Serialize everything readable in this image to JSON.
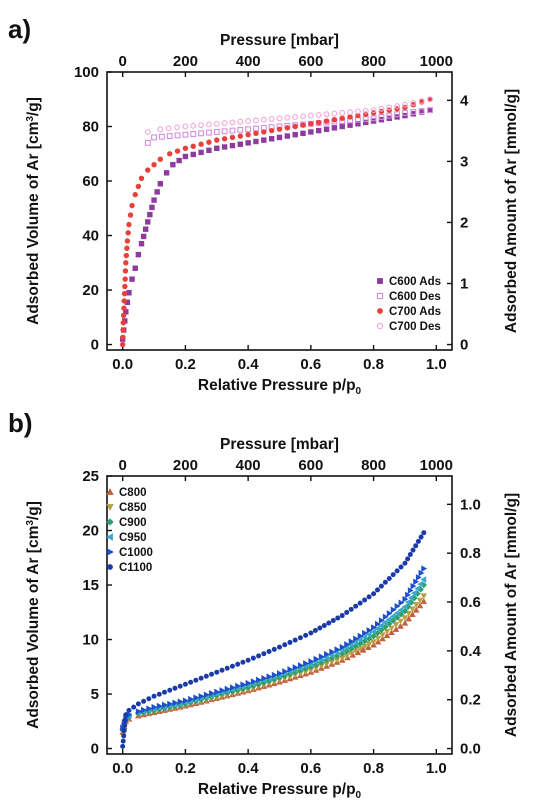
{
  "chart_data": [
    {
      "panel": "a)",
      "type": "scatter",
      "xlabel": "Relative Pressure p/p",
      "xlabel_sub": "0",
      "ylabel": "Adsorbed Volume of Ar [cm",
      "ylabel_sup": "3",
      "ylabel_end": "/g]",
      "top_xlabel": "Pressure [mbar]",
      "right_ylabel": "Adsorbed Amount of Ar [mmol/g]",
      "xlim": [
        -0.05,
        1.05
      ],
      "ylim": [
        -2,
        100
      ],
      "x_ticks": [
        "0.0",
        "0.2",
        "0.4",
        "0.6",
        "0.8",
        "1.0"
      ],
      "y_ticks": [
        "0",
        "20",
        "40",
        "60",
        "80",
        "100"
      ],
      "top_ticks": [
        "0",
        "200",
        "400",
        "600",
        "800",
        "1000"
      ],
      "right_ticks": [
        "0",
        "1",
        "2",
        "3",
        "4"
      ],
      "legend_position": "bottom-right",
      "series": [
        {
          "name": "C600 Ads",
          "color": "#8e3a9e",
          "marker": "square",
          "filled": true,
          "x": [
            0.0,
            0.01,
            0.02,
            0.03,
            0.04,
            0.05,
            0.06,
            0.08,
            0.1,
            0.12,
            0.14,
            0.16,
            0.2,
            0.3,
            0.4,
            0.5,
            0.6,
            0.7,
            0.8,
            0.9,
            0.98
          ],
          "y": [
            2,
            12,
            19,
            24,
            28,
            33,
            37,
            45,
            53,
            59,
            63,
            66,
            69,
            72,
            74,
            76,
            78,
            80,
            82,
            84,
            86
          ]
        },
        {
          "name": "C600 Des",
          "color": "#d58fe0",
          "marker": "square",
          "filled": false,
          "x": [
            0.98,
            0.9,
            0.8,
            0.7,
            0.6,
            0.5,
            0.4,
            0.3,
            0.2,
            0.1,
            0.08
          ],
          "y": [
            86,
            85,
            83,
            82,
            81,
            80,
            79,
            78,
            77,
            76,
            74
          ]
        },
        {
          "name": "C700 Ads",
          "color": "#e8403a",
          "marker": "circle",
          "filled": true,
          "x": [
            0.0,
            0.002,
            0.005,
            0.008,
            0.01,
            0.015,
            0.02,
            0.03,
            0.04,
            0.05,
            0.06,
            0.08,
            0.1,
            0.12,
            0.15,
            0.2,
            0.3,
            0.4,
            0.5,
            0.6,
            0.7,
            0.8,
            0.9,
            0.98
          ],
          "y": [
            0,
            8,
            16,
            24,
            30,
            38,
            44,
            51,
            55,
            58,
            61,
            64,
            66,
            68,
            70,
            72,
            75,
            77,
            79,
            81,
            83,
            85,
            87,
            90
          ]
        },
        {
          "name": "C700 Des",
          "color": "#f2a6d8",
          "marker": "circle",
          "filled": false,
          "x": [
            0.98,
            0.9,
            0.8,
            0.7,
            0.6,
            0.5,
            0.4,
            0.3,
            0.2,
            0.12,
            0.08
          ],
          "y": [
            90,
            88,
            86,
            85,
            84,
            83,
            82,
            81,
            80,
            79,
            78
          ]
        }
      ]
    },
    {
      "panel": "b)",
      "type": "scatter",
      "xlabel": "Relative Pressure p/p",
      "xlabel_sub": "0",
      "ylabel": "Adsorbed Volume of Ar [cm",
      "ylabel_sup": "3",
      "ylabel_end": "/g]",
      "top_xlabel": "Pressure [mbar]",
      "right_ylabel": "Adsorbed Amount of Ar [mmol/g]",
      "xlim": [
        -0.05,
        1.05
      ],
      "ylim": [
        -0.5,
        25
      ],
      "x_ticks": [
        "0.0",
        "0.2",
        "0.4",
        "0.6",
        "0.8",
        "1.0"
      ],
      "y_ticks": [
        "0",
        "5",
        "10",
        "15",
        "20",
        "25"
      ],
      "top_ticks": [
        "0",
        "200",
        "400",
        "600",
        "800",
        "1000"
      ],
      "right_ticks": [
        "0.0",
        "0.2",
        "0.4",
        "0.6",
        "0.8",
        "1.0"
      ],
      "legend_position": "top-left",
      "series": [
        {
          "name": "C800",
          "color": "#c0603c",
          "marker": "triangle-up",
          "x": [
            0.0,
            0.01,
            0.02,
            0.05,
            0.1,
            0.2,
            0.3,
            0.4,
            0.5,
            0.6,
            0.7,
            0.8,
            0.9,
            0.96
          ],
          "y": [
            1.5,
            2.5,
            2.7,
            3.0,
            3.3,
            3.9,
            4.6,
            5.3,
            6.1,
            7.0,
            8.1,
            9.5,
            11.5,
            13.5
          ]
        },
        {
          "name": "C850",
          "color": "#b8a040",
          "marker": "triangle-down",
          "x": [
            0.0,
            0.01,
            0.02,
            0.05,
            0.1,
            0.2,
            0.3,
            0.4,
            0.5,
            0.6,
            0.7,
            0.8,
            0.9,
            0.96
          ],
          "y": [
            1.6,
            2.6,
            2.8,
            3.1,
            3.4,
            4.0,
            4.7,
            5.4,
            6.3,
            7.2,
            8.3,
            9.8,
            12.0,
            14.0
          ]
        },
        {
          "name": "C900",
          "color": "#2e9e6a",
          "marker": "diamond",
          "x": [
            0.0,
            0.01,
            0.02,
            0.05,
            0.1,
            0.2,
            0.3,
            0.4,
            0.5,
            0.6,
            0.7,
            0.8,
            0.9,
            0.96
          ],
          "y": [
            1.7,
            2.7,
            2.9,
            3.2,
            3.5,
            4.1,
            4.9,
            5.6,
            6.5,
            7.5,
            8.7,
            10.3,
            12.6,
            15.0
          ]
        },
        {
          "name": "C950",
          "color": "#3aa8c8",
          "marker": "triangle-left",
          "x": [
            0.0,
            0.01,
            0.02,
            0.05,
            0.1,
            0.2,
            0.3,
            0.4,
            0.5,
            0.6,
            0.7,
            0.8,
            0.9,
            0.96
          ],
          "y": [
            1.8,
            2.8,
            3.0,
            3.3,
            3.6,
            4.2,
            5.0,
            5.8,
            6.7,
            7.7,
            9.0,
            10.7,
            13.0,
            15.5
          ]
        },
        {
          "name": "C1000",
          "color": "#1f4fc8",
          "marker": "triangle-right",
          "x": [
            0.0,
            0.01,
            0.02,
            0.05,
            0.1,
            0.2,
            0.3,
            0.4,
            0.5,
            0.6,
            0.7,
            0.8,
            0.9,
            0.96
          ],
          "y": [
            1.9,
            2.9,
            3.1,
            3.4,
            3.8,
            4.4,
            5.2,
            6.0,
            6.9,
            8.0,
            9.3,
            11.1,
            13.7,
            16.5
          ]
        },
        {
          "name": "C1100",
          "color": "#1a3aa8",
          "marker": "circle",
          "x": [
            0.0,
            0.01,
            0.02,
            0.05,
            0.1,
            0.2,
            0.3,
            0.4,
            0.5,
            0.6,
            0.7,
            0.8,
            0.9,
            0.96
          ],
          "y": [
            0.2,
            3.1,
            3.5,
            4.1,
            4.8,
            5.9,
            7.0,
            8.1,
            9.3,
            10.6,
            12.2,
            14.2,
            17.0,
            19.8
          ]
        }
      ]
    }
  ]
}
